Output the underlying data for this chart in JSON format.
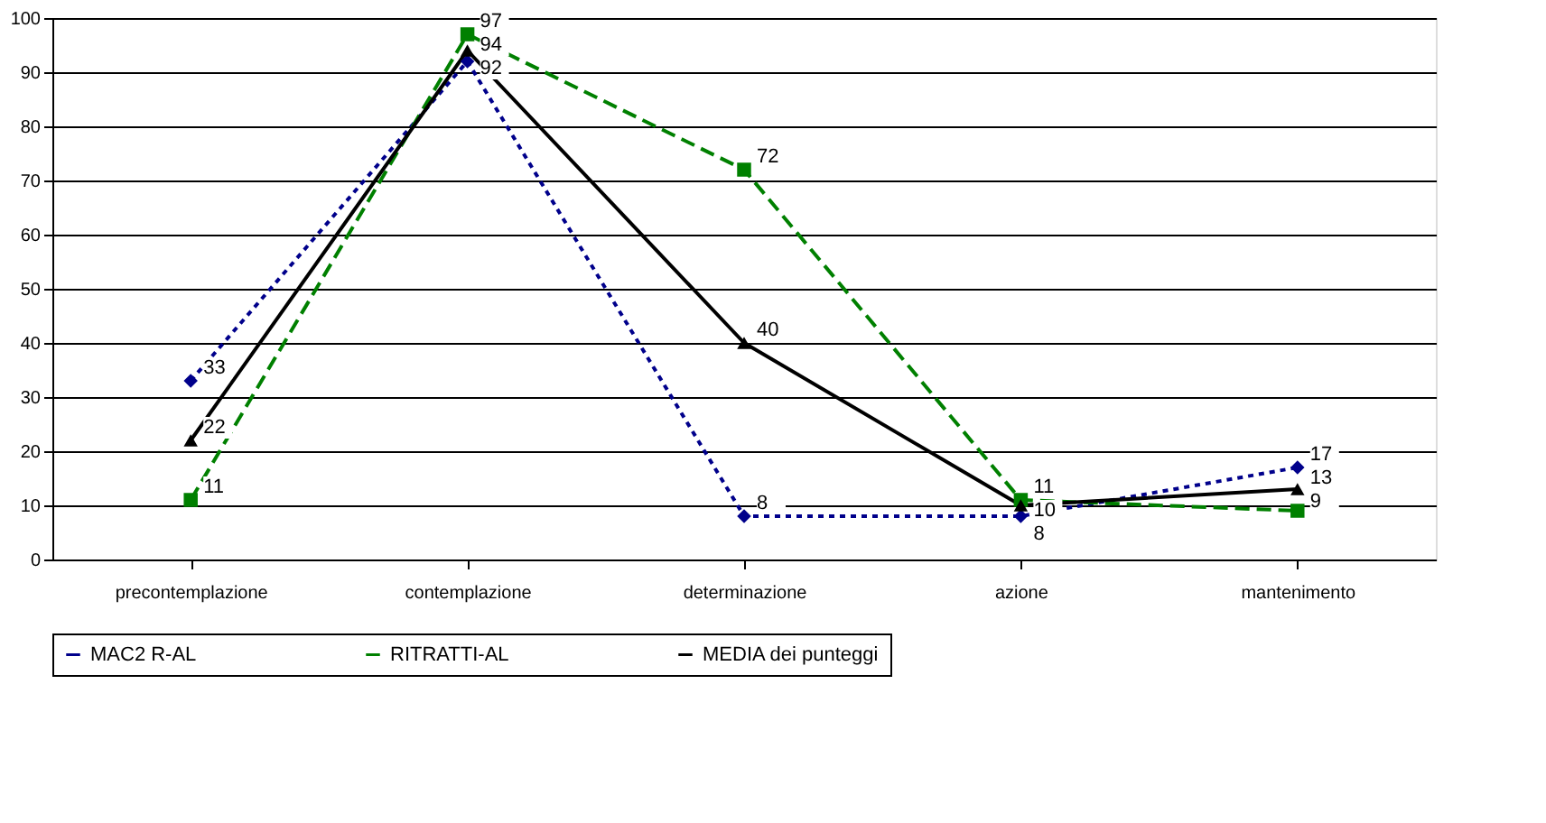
{
  "chart_data": {
    "type": "line",
    "categories": [
      "precontemplazione",
      "contemplazione",
      "determinazione",
      "azione",
      "mantenimento"
    ],
    "series": [
      {
        "name": "MAC2 R-AL",
        "color": "#00008b",
        "values": [
          33,
          92,
          8,
          8,
          17
        ],
        "marker": "diamond",
        "line_style": "dotted"
      },
      {
        "name": "RITRATTI-AL",
        "color": "#008000",
        "values": [
          11,
          97,
          72,
          11,
          9
        ],
        "marker": "square",
        "line_style": "dashed"
      },
      {
        "name": "MEDIA dei punteggi",
        "color": "#000000",
        "values": [
          22,
          94,
          40,
          10,
          13
        ],
        "marker": "triangle",
        "line_style": "solid"
      }
    ],
    "ylim": [
      0,
      100
    ],
    "yticks": [
      0,
      10,
      20,
      30,
      40,
      50,
      60,
      70,
      80,
      90,
      100
    ],
    "grid": "y",
    "legend": "bottom",
    "data_labels": true
  }
}
